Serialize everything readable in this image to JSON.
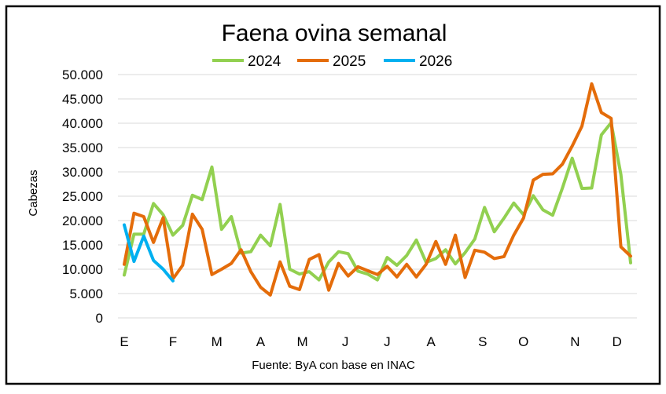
{
  "chart_data": {
    "type": "line",
    "title": "Faena ovina semanal",
    "ylabel": "Cabezas",
    "xlabel": "",
    "source": "Fuente: ByA con base en INAC",
    "ylim": [
      0,
      50000
    ],
    "yticks": [
      "0",
      "5.000",
      "10.000",
      "15.000",
      "20.000",
      "25.000",
      "30.000",
      "35.000",
      "40.000",
      "45.000",
      "50.000"
    ],
    "month_ticks": [
      {
        "label": "E",
        "week": 1
      },
      {
        "label": "F",
        "week": 6
      },
      {
        "label": "M",
        "week": 10.5
      },
      {
        "label": "A",
        "week": 15
      },
      {
        "label": "M",
        "week": 19.3
      },
      {
        "label": "J",
        "week": 23.7
      },
      {
        "label": "J",
        "week": 28
      },
      {
        "label": "A",
        "week": 32.5
      },
      {
        "label": "S",
        "week": 37.8
      },
      {
        "label": "O",
        "week": 42
      },
      {
        "label": "N",
        "week": 47.3
      },
      {
        "label": "D",
        "week": 51.6
      }
    ],
    "grid": true,
    "legend_position": "top",
    "series": [
      {
        "name": "2024",
        "color": "#92D050",
        "values": [
          8800,
          17200,
          17200,
          23500,
          21200,
          17000,
          19000,
          25200,
          24300,
          31000,
          18200,
          20800,
          13300,
          13600,
          17000,
          14800,
          23300,
          10000,
          9000,
          9500,
          7800,
          11500,
          13600,
          13200,
          9600,
          9000,
          7800,
          12400,
          10800,
          12800,
          16000,
          11400,
          12200,
          14000,
          11100,
          13400,
          16200,
          22700,
          17700,
          20500,
          23600,
          21200,
          25100,
          22200,
          21100,
          26700,
          32800,
          26600,
          26700,
          37600,
          40100,
          29500,
          11300
        ]
      },
      {
        "name": "2025",
        "color": "#E46C0A",
        "values": [
          11000,
          21500,
          20800,
          15500,
          20600,
          8000,
          10800,
          21300,
          18200,
          8900,
          10000,
          11200,
          14000,
          9500,
          6300,
          4700,
          11500,
          6500,
          5800,
          12000,
          13000,
          5700,
          11200,
          8600,
          10500,
          9700,
          8900,
          10600,
          8400,
          11000,
          8400,
          11000,
          15700,
          11000,
          17000,
          8300,
          13900,
          13500,
          12200,
          12600,
          17000,
          20500,
          28300,
          29500,
          29600,
          31600,
          35300,
          39400,
          48100,
          42200,
          41000,
          14600,
          12700
        ]
      },
      {
        "name": "2026",
        "color": "#00B0F0",
        "values": [
          19100,
          11600,
          16800,
          11800,
          10000,
          7600
        ]
      }
    ]
  }
}
